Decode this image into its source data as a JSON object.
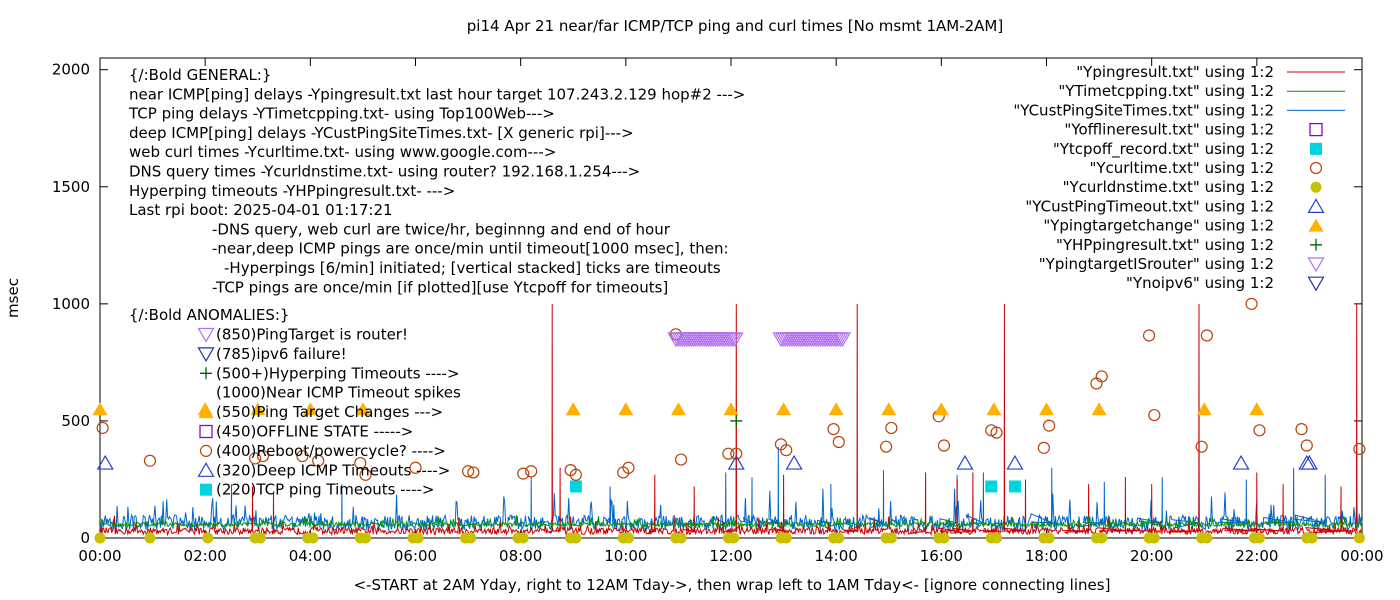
{
  "chart_data": {
    "type": "line",
    "title": "pi14 Apr 21  near/far ICMP/TCP ping and curl times [No msmt 1AM-2AM]",
    "xlabel": "<-START at 2AM Yday, right to 12AM Tday->, then wrap left to 1AM Tday<- [ignore connecting lines]",
    "ylabel": "msec",
    "xlim": [
      0,
      24
    ],
    "ylim": [
      0,
      2050
    ],
    "x_ticks": [
      {
        "v": 0,
        "label": "00:00"
      },
      {
        "v": 2,
        "label": "02:00"
      },
      {
        "v": 4,
        "label": "04:00"
      },
      {
        "v": 6,
        "label": "06:00"
      },
      {
        "v": 8,
        "label": "08:00"
      },
      {
        "v": 10,
        "label": "10:00"
      },
      {
        "v": 12,
        "label": "12:00"
      },
      {
        "v": 14,
        "label": "14:00"
      },
      {
        "v": 16,
        "label": "16:00"
      },
      {
        "v": 18,
        "label": "18:00"
      },
      {
        "v": 20,
        "label": "20:00"
      },
      {
        "v": 22,
        "label": "22:00"
      },
      {
        "v": 24,
        "label": "00:00"
      }
    ],
    "y_ticks": [
      {
        "v": 0,
        "label": "0"
      },
      {
        "v": 500,
        "label": "500"
      },
      {
        "v": 1000,
        "label": "1000"
      },
      {
        "v": 1500,
        "label": "1500"
      },
      {
        "v": 2000,
        "label": "2000"
      }
    ],
    "grid": false,
    "legend_position": "top-right",
    "annotation_lines": [
      {
        "text": "{/:Bold GENERAL:}",
        "indent": 0
      },
      {
        "text": "near ICMP[ping] delays -Ypingresult.txt last hour target 107.243.2.129 hop#2 --->",
        "indent": 0
      },
      {
        "text": "TCP ping delays -YTimetcpping.txt- using Top100Web--->",
        "indent": 0
      },
      {
        "text": "deep ICMP[ping] delays -YCustPingSiteTimes.txt- [X generic rpi]--->",
        "indent": 0
      },
      {
        "text": "web curl times -Ycurltime.txt- using www.google.com--->",
        "indent": 0
      },
      {
        "text": "DNS query times -Ycurldnstime.txt- using router? 192.168.1.254--->",
        "indent": 0
      },
      {
        "text": "Hyperping timeouts -YHPpingresult.txt- --->",
        "indent": 0
      },
      {
        "text": "Last rpi boot: 2025-04-01 01:17:21",
        "indent": 0
      },
      {
        "text": "-DNS query, web curl are twice/hr, beginnng and end of hour",
        "indent": 1
      },
      {
        "text": "-near,deep ICMP pings are once/min until timeout[1000 msec], then:",
        "indent": 1
      },
      {
        "text": "-Hyperpings [6/min] initiated; [vertical stacked] ticks are timeouts",
        "indent": 2
      },
      {
        "text": "-TCP pings are once/min [if plotted][use Ytcpoff for timeouts]",
        "indent": 1
      }
    ],
    "anomalies_title": "{/:Bold ANOMALIES:}",
    "anomaly_items": [
      {
        "marker": "tri-down-violet",
        "text": "(850)PingTarget is router!"
      },
      {
        "marker": "tri-down-blue",
        "text": "(785)ipv6 failure!"
      },
      {
        "marker": "plus-green",
        "text": "(500+)Hyperping Timeouts ---->"
      },
      {
        "marker": "none",
        "text": "(1000)Near ICMP Timeout spikes"
      },
      {
        "marker": "tri-up-gold",
        "text": "(550)Ping Target Changes --->"
      },
      {
        "marker": "square-purple",
        "text": "(450)OFFLINE STATE ----->"
      },
      {
        "marker": "circle-brown",
        "text": "(400)Reboot/powercycle? ---->"
      },
      {
        "marker": "tri-up-blue",
        "text": "(320)Deep ICMP Timeouts ---->"
      },
      {
        "marker": "square-cyan",
        "text": "(220)TCP ping Timeouts ---->"
      }
    ],
    "series": [
      {
        "name": "\"Ypingresult.txt\" using 1:2",
        "kind": "line",
        "color": "#cc0000",
        "baseline": 30,
        "noise": 25,
        "spikes": [
          [
            2.9,
            220
          ],
          [
            3.3,
            200
          ],
          [
            8.6,
            1000
          ],
          [
            8.75,
            300
          ],
          [
            10.55,
            270
          ],
          [
            11.3,
            220
          ],
          [
            12.1,
            1000
          ],
          [
            13.0,
            270
          ],
          [
            14.4,
            1000
          ],
          [
            15.7,
            280
          ],
          [
            16.3,
            250
          ],
          [
            16.6,
            280
          ],
          [
            17.2,
            1000
          ],
          [
            17.6,
            250
          ],
          [
            18.8,
            230
          ],
          [
            19.5,
            260
          ],
          [
            20.0,
            230
          ],
          [
            20.9,
            1000
          ],
          [
            22.0,
            280
          ],
          [
            22.5,
            230
          ],
          [
            23.6,
            220
          ],
          [
            23.9,
            1000
          ]
        ]
      },
      {
        "name": "\"YTimetcpping.txt\" using 1:2",
        "kind": "line",
        "color": "#009900",
        "baseline": 58,
        "noise": 15,
        "spikes": []
      },
      {
        "name": "\"YCustPingSiteTimes.txt\" using 1:2",
        "kind": "line",
        "color": "#0066cc",
        "baseline": 65,
        "noise": 55,
        "spikes": [
          [
            2.5,
            230
          ],
          [
            4.6,
            230
          ],
          [
            8.2,
            260
          ],
          [
            9.7,
            220
          ],
          [
            11.9,
            280
          ],
          [
            12.4,
            260
          ],
          [
            12.9,
            390
          ],
          [
            13.9,
            230
          ],
          [
            14.9,
            290
          ],
          [
            16.3,
            270
          ],
          [
            16.8,
            280
          ],
          [
            18.1,
            300
          ],
          [
            19.1,
            240
          ],
          [
            20.2,
            260
          ],
          [
            20.9,
            300
          ],
          [
            21.8,
            250
          ],
          [
            22.7,
            300
          ],
          [
            23.3,
            270
          ]
        ]
      },
      {
        "name": "\"Yofflineresult.txt\" using 1:2",
        "kind": "marker",
        "marker": "square-purple",
        "points": []
      },
      {
        "name": "\"Ytcpoff_record.txt\" using 1:2",
        "kind": "marker",
        "marker": "square-cyan",
        "points": [
          [
            9.05,
            220
          ],
          [
            16.95,
            220
          ],
          [
            17.4,
            220
          ]
        ]
      },
      {
        "name": "\"Ycurltime.txt\" using 1:2",
        "kind": "marker",
        "marker": "circle-brown",
        "points": [
          [
            0.05,
            470
          ],
          [
            0.95,
            330
          ],
          [
            2.95,
            340
          ],
          [
            3.1,
            350
          ],
          [
            3.85,
            350
          ],
          [
            4.15,
            330
          ],
          [
            4.95,
            320
          ],
          [
            5.05,
            270
          ],
          [
            6.0,
            300
          ],
          [
            7.0,
            285
          ],
          [
            7.1,
            280
          ],
          [
            8.05,
            275
          ],
          [
            8.2,
            285
          ],
          [
            8.95,
            290
          ],
          [
            9.05,
            270
          ],
          [
            9.95,
            280
          ],
          [
            10.05,
            300
          ],
          [
            10.95,
            870
          ],
          [
            11.05,
            335
          ],
          [
            11.95,
            360
          ],
          [
            12.1,
            360
          ],
          [
            12.95,
            400
          ],
          [
            13.05,
            375
          ],
          [
            13.95,
            465
          ],
          [
            14.05,
            410
          ],
          [
            14.95,
            390
          ],
          [
            15.05,
            470
          ],
          [
            15.95,
            520
          ],
          [
            16.05,
            395
          ],
          [
            16.95,
            460
          ],
          [
            17.05,
            450
          ],
          [
            17.95,
            385
          ],
          [
            18.05,
            480
          ],
          [
            18.95,
            660
          ],
          [
            19.05,
            690
          ],
          [
            19.95,
            865
          ],
          [
            20.05,
            525
          ],
          [
            20.95,
            390
          ],
          [
            21.05,
            865
          ],
          [
            21.9,
            1000
          ],
          [
            22.05,
            460
          ],
          [
            22.85,
            465
          ],
          [
            22.95,
            395
          ],
          [
            23.95,
            380
          ]
        ]
      },
      {
        "name": "\"Ycurldnstime.txt\" using 1:2",
        "kind": "marker",
        "marker": "circle-gold",
        "points": [
          [
            0.0,
            0
          ],
          [
            0.95,
            0
          ],
          [
            2.05,
            0
          ],
          [
            2.95,
            0
          ],
          [
            3.05,
            0
          ],
          [
            3.95,
            0
          ],
          [
            4.05,
            0
          ],
          [
            4.95,
            0
          ],
          [
            5.05,
            0
          ],
          [
            5.95,
            0
          ],
          [
            6.05,
            0
          ],
          [
            6.95,
            0
          ],
          [
            7.05,
            0
          ],
          [
            7.95,
            0
          ],
          [
            8.05,
            0
          ],
          [
            8.95,
            0
          ],
          [
            9.05,
            0
          ],
          [
            9.95,
            0
          ],
          [
            10.05,
            0
          ],
          [
            10.95,
            0
          ],
          [
            11.05,
            0
          ],
          [
            11.95,
            0
          ],
          [
            12.05,
            0
          ],
          [
            12.95,
            0
          ],
          [
            13.05,
            0
          ],
          [
            13.95,
            0
          ],
          [
            14.05,
            0
          ],
          [
            14.95,
            0
          ],
          [
            15.05,
            0
          ],
          [
            15.95,
            0
          ],
          [
            16.05,
            0
          ],
          [
            16.95,
            0
          ],
          [
            17.05,
            0
          ],
          [
            17.95,
            0
          ],
          [
            18.05,
            0
          ],
          [
            18.95,
            0
          ],
          [
            19.05,
            0
          ],
          [
            19.95,
            0
          ],
          [
            20.05,
            0
          ],
          [
            20.95,
            0
          ],
          [
            21.05,
            0
          ],
          [
            21.95,
            0
          ],
          [
            22.05,
            0
          ],
          [
            22.95,
            0
          ],
          [
            23.05,
            0
          ],
          [
            23.95,
            0
          ]
        ]
      },
      {
        "name": "\"YCustPingTimeout.txt\" using 1:2",
        "kind": "marker",
        "marker": "tri-up-blue",
        "points": [
          [
            0.1,
            320
          ],
          [
            12.1,
            320
          ],
          [
            13.2,
            320
          ],
          [
            16.45,
            320
          ],
          [
            17.4,
            320
          ],
          [
            21.7,
            320
          ],
          [
            22.95,
            320
          ],
          [
            23.0,
            320
          ]
        ]
      },
      {
        "name": "\"Ypingtargetchange\" using 1:2",
        "kind": "marker",
        "marker": "tri-up-gold",
        "points": [
          [
            0.0,
            550
          ],
          [
            2.0,
            550
          ],
          [
            3.0,
            550
          ],
          [
            4.0,
            550
          ],
          [
            5.0,
            550
          ],
          [
            9.0,
            550
          ],
          [
            10.0,
            550
          ],
          [
            11.0,
            550
          ],
          [
            12.0,
            550
          ],
          [
            13.0,
            550
          ],
          [
            14.0,
            550
          ],
          [
            15.0,
            550
          ],
          [
            16.0,
            550
          ],
          [
            17.0,
            550
          ],
          [
            18.0,
            550
          ],
          [
            19.0,
            550
          ],
          [
            21.0,
            550
          ],
          [
            22.0,
            550
          ]
        ]
      },
      {
        "name": "\"YHPpingresult.txt\" using 1:2",
        "kind": "marker",
        "marker": "plus-green",
        "points": [
          [
            12.1,
            500
          ]
        ]
      },
      {
        "name": "\"YpingtargetISrouter\" using 1:2",
        "kind": "marker",
        "marker": "tri-down-violet",
        "points": [],
        "ranges": [
          {
            "x_from": 10.95,
            "x_to": 12.1,
            "y": 850
          },
          {
            "x_from": 12.95,
            "x_to": 14.15,
            "y": 850
          }
        ]
      },
      {
        "name": "\"Ynoipv6\" using 1:2",
        "kind": "marker",
        "marker": "tri-down-blue",
        "points": []
      }
    ]
  },
  "colors": {
    "ping": "#cc0000",
    "tcp": "#009900",
    "deep": "#0066cc",
    "offline": "#9400d3",
    "tcpoff": "#00d4e0",
    "curl": "#b8420a",
    "dns": "#c8c000",
    "custTimeout": "#2244cc",
    "targetChange": "#ffb000",
    "hyperping": "#006400",
    "isRouter": "#b070f0",
    "noipv6": "#1a3a9a"
  }
}
